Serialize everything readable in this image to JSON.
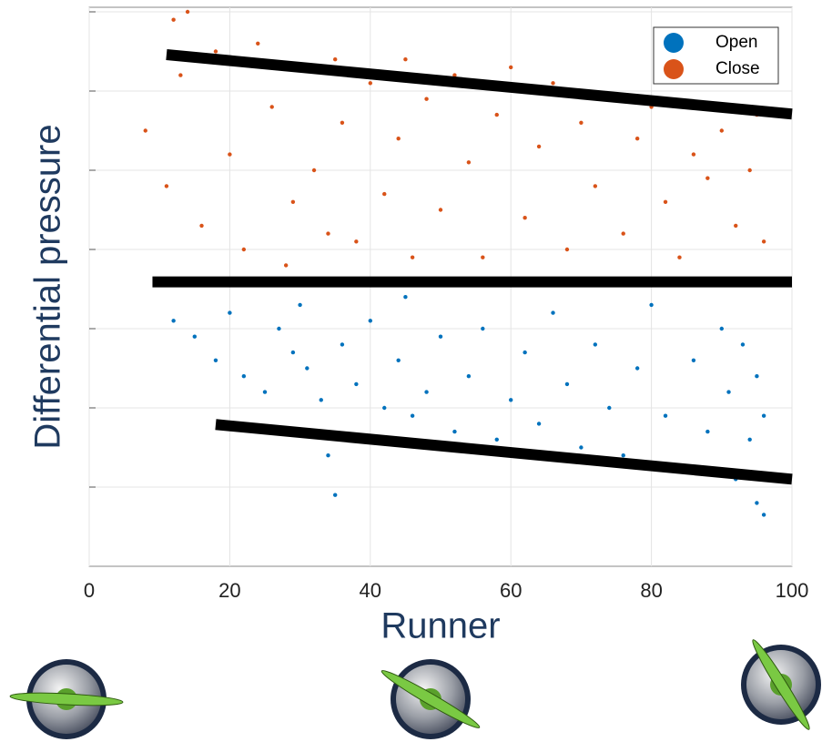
{
  "chart_data": {
    "type": "scatter",
    "x_label": "Runner",
    "y_label": "Differential pressure",
    "xlim": [
      0,
      100
    ],
    "xticks": [
      0,
      20,
      40,
      60,
      80,
      100
    ],
    "ylim": [
      0,
      7
    ],
    "yticks": [
      1,
      2,
      3,
      4,
      5,
      6,
      7
    ],
    "grid": true,
    "legend": "upper right",
    "series": [
      {
        "name": "Open",
        "color": "#0072bd",
        "x": [
          12,
          15,
          18,
          20,
          22,
          25,
          27,
          29,
          30,
          31,
          33,
          34,
          35,
          36,
          38,
          40,
          42,
          44,
          45,
          46,
          48,
          50,
          52,
          54,
          56,
          58,
          60,
          62,
          64,
          66,
          68,
          70,
          72,
          74,
          76,
          78,
          80,
          82,
          84,
          86,
          88,
          90,
          91,
          92,
          93,
          94,
          95,
          95,
          96,
          96
        ],
        "values": [
          3.1,
          2.9,
          2.6,
          3.2,
          2.4,
          2.2,
          3.0,
          2.7,
          3.3,
          2.5,
          2.1,
          1.4,
          0.9,
          2.8,
          2.3,
          3.1,
          2.0,
          2.6,
          3.4,
          1.9,
          2.2,
          2.9,
          1.7,
          2.4,
          3.0,
          1.6,
          2.1,
          2.7,
          1.8,
          3.2,
          2.3,
          1.5,
          2.8,
          2.0,
          1.4,
          2.5,
          3.3,
          1.9,
          1.2,
          2.6,
          1.7,
          3.0,
          2.2,
          1.1,
          2.8,
          1.6,
          0.8,
          2.4,
          0.65,
          1.9
        ]
      },
      {
        "name": "Close",
        "color": "#d95319",
        "x": [
          8,
          11,
          12,
          13,
          14,
          16,
          18,
          20,
          22,
          24,
          26,
          28,
          29,
          30,
          32,
          34,
          35,
          36,
          38,
          40,
          42,
          44,
          45,
          46,
          48,
          50,
          52,
          54,
          56,
          58,
          60,
          62,
          64,
          66,
          68,
          70,
          72,
          74,
          76,
          78,
          80,
          82,
          84,
          86,
          88,
          90,
          92,
          94,
          95,
          96
        ],
        "values": [
          5.5,
          4.8,
          6.9,
          6.2,
          7.0,
          4.3,
          6.5,
          5.2,
          4.0,
          6.6,
          5.8,
          3.8,
          4.6,
          6.3,
          5.0,
          4.2,
          6.4,
          5.6,
          4.1,
          6.1,
          4.7,
          5.4,
          6.4,
          3.9,
          5.9,
          4.5,
          6.2,
          5.1,
          3.9,
          5.7,
          6.3,
          4.4,
          5.3,
          6.1,
          4.0,
          5.6,
          4.8,
          5.9,
          4.2,
          5.4,
          5.8,
          4.6,
          3.9,
          5.2,
          4.9,
          5.5,
          4.3,
          5.0,
          5.7,
          4.1
        ]
      }
    ],
    "lines": [
      {
        "color": "#000000",
        "x": [
          11,
          100
        ],
        "values": [
          6.46,
          5.71
        ]
      },
      {
        "color": "#000000",
        "x": [
          9,
          100
        ],
        "values": [
          3.59,
          3.59
        ]
      },
      {
        "color": "#000000",
        "x": [
          18,
          100
        ],
        "values": [
          1.79,
          1.1
        ]
      }
    ]
  }
}
